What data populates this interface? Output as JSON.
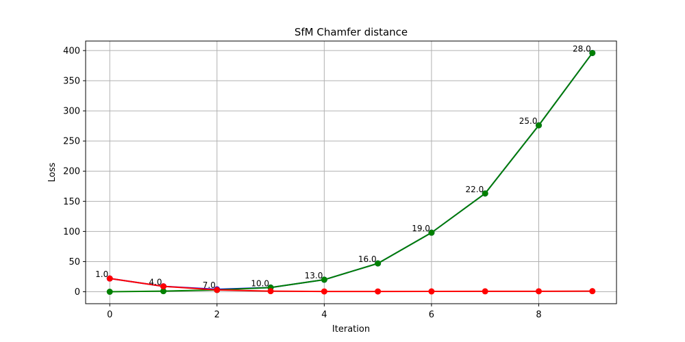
{
  "chart_data": {
    "type": "line",
    "title": "SfM Chamfer distance",
    "xlabel": "Iteration",
    "ylabel": "Loss",
    "xlim": [
      -0.45,
      9.45
    ],
    "ylim": [
      -19.8,
      415.8
    ],
    "grid": true,
    "x_ticks": [
      0,
      2,
      4,
      6,
      8
    ],
    "x_tick_labels": [
      "0",
      "2",
      "4",
      "6",
      "8"
    ],
    "y_ticks": [
      0,
      50,
      100,
      150,
      200,
      250,
      300,
      350,
      400
    ],
    "y_tick_labels": [
      "0",
      "50",
      "100",
      "150",
      "200",
      "250",
      "300",
      "350",
      "400"
    ],
    "x": [
      0,
      1,
      2,
      3,
      4,
      5,
      6,
      7,
      8,
      9
    ],
    "series": [
      {
        "color": "#0000ff",
        "values": [
          22,
          9,
          4,
          7,
          20,
          47,
          98,
          163,
          276,
          396
        ]
      },
      {
        "color": "#008000",
        "values": [
          0,
          1,
          3,
          7,
          20,
          47,
          98,
          163,
          276,
          396
        ]
      },
      {
        "color": "#ff0000",
        "values": [
          22,
          9,
          3,
          1,
          0.5,
          0.5,
          0.6,
          0.7,
          0.8,
          1
        ]
      }
    ],
    "annotations": [
      {
        "text": "1.0",
        "x": 0,
        "y": 22
      },
      {
        "text": "4.0",
        "x": 1,
        "y": 9
      },
      {
        "text": "7.0",
        "x": 2,
        "y": 4
      },
      {
        "text": "10.0",
        "x": 3,
        "y": 7
      },
      {
        "text": "13.0",
        "x": 4,
        "y": 20
      },
      {
        "text": "16.0",
        "x": 5,
        "y": 47
      },
      {
        "text": "19.0",
        "x": 6,
        "y": 98
      },
      {
        "text": "22.0",
        "x": 7,
        "y": 163
      },
      {
        "text": "25.0",
        "x": 8,
        "y": 276
      },
      {
        "text": "28.0",
        "x": 9,
        "y": 396
      }
    ]
  }
}
